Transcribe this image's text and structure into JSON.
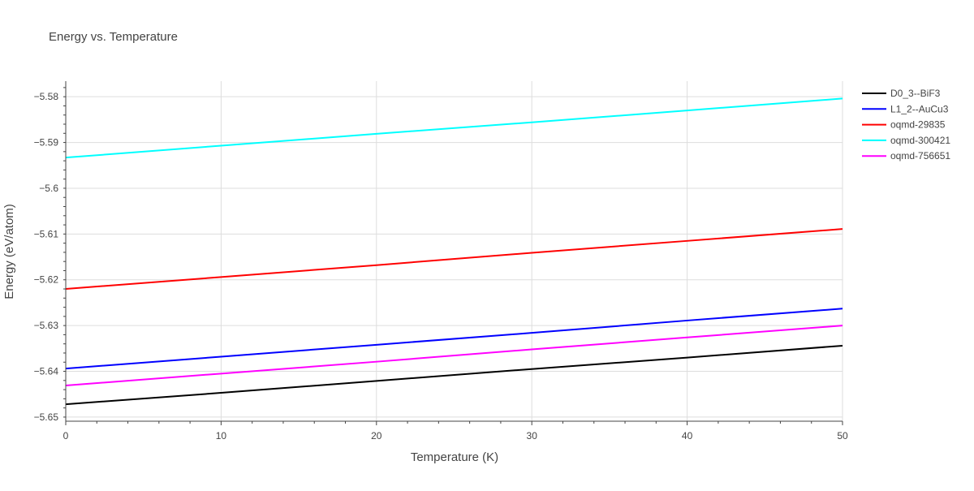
{
  "chart_data": {
    "type": "line",
    "title": "Energy vs. Temperature",
    "xlabel": "Temperature (K)",
    "ylabel": "Energy (eV/atom)",
    "xlim": [
      0,
      50
    ],
    "ylim": [
      -5.6509,
      -5.5766
    ],
    "xticks": [
      0,
      10,
      20,
      30,
      40,
      50
    ],
    "yticks": [
      -5.58,
      -5.59,
      -5.6,
      -5.61,
      -5.62,
      -5.63,
      -5.64,
      -5.65
    ],
    "ytick_labels": [
      "−5.58",
      "−5.59",
      "−5.6",
      "−5.61",
      "−5.62",
      "−5.63",
      "−5.64",
      "−5.65"
    ],
    "grid": true,
    "legend_position": "top-right",
    "x": [
      0,
      10,
      20,
      30,
      40,
      50
    ],
    "series": [
      {
        "name": "D0_3--BiF3",
        "color": "#000000",
        "values": [
          -5.6472,
          -5.6447,
          -5.6421,
          -5.6395,
          -5.637,
          -5.6344
        ]
      },
      {
        "name": "L1_2--AuCu3",
        "color": "#0000ff",
        "values": [
          -5.6394,
          -5.6368,
          -5.6342,
          -5.6316,
          -5.6289,
          -5.6263
        ]
      },
      {
        "name": "oqmd-29835",
        "color": "#ff0000",
        "values": [
          -5.622,
          -5.6194,
          -5.6168,
          -5.6141,
          -5.6115,
          -5.6089
        ]
      },
      {
        "name": "oqmd-300421",
        "color": "#00ffff",
        "values": [
          -5.5933,
          -5.5907,
          -5.5881,
          -5.5856,
          -5.583,
          -5.5804
        ]
      },
      {
        "name": "oqmd-756651",
        "color": "#ff00ff",
        "values": [
          -5.6431,
          -5.6405,
          -5.6379,
          -5.6352,
          -5.6326,
          -5.63
        ]
      }
    ]
  }
}
